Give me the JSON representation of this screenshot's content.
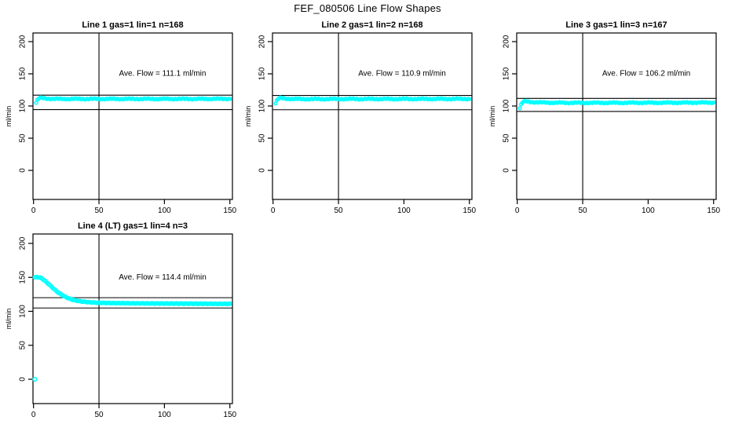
{
  "page_title": "FEF_080506  Line Flow Shapes",
  "colors": {
    "marker": "#00FFFF",
    "axis": "#000000",
    "background": "#FFFFFF",
    "text": "#000000"
  },
  "chart_data": [
    {
      "type": "scatter",
      "title": "Line 1 gas=1 lin=1 n=168",
      "line": 1,
      "gas": 1,
      "lin": 1,
      "n": 168,
      "annotation": "Ave. Flow =  111.1  ml/min",
      "ave_flow_ml_min": 111.1,
      "ylabel": "ml/min",
      "x_ticks": [
        0,
        50,
        100,
        150
      ],
      "y_ticks": [
        0,
        50,
        100,
        150,
        200
      ],
      "xlim": [
        0,
        152
      ],
      "ylim": [
        -45,
        217
      ],
      "grid": false,
      "legend": false,
      "vline_x": 50,
      "hlines": [
        116.9,
        94.4
      ],
      "x_start": 2,
      "x_end": 150,
      "plot_point_count": 168,
      "series_anchors": [
        [
          2,
          105
        ],
        [
          3,
          109.5
        ],
        [
          4,
          111.8
        ],
        [
          5,
          112.8
        ],
        [
          6,
          112.6
        ],
        [
          8,
          112
        ],
        [
          10,
          111.6
        ],
        [
          14,
          111.2
        ],
        [
          20,
          111
        ],
        [
          30,
          111
        ],
        [
          50,
          111
        ],
        [
          75,
          111
        ],
        [
          100,
          111
        ],
        [
          125,
          111
        ],
        [
          150,
          111.2
        ]
      ],
      "outliers": []
    },
    {
      "type": "scatter",
      "title": "Line 2 gas=1 lin=2 n=168",
      "line": 2,
      "gas": 1,
      "lin": 2,
      "n": 168,
      "annotation": "Ave. Flow =  110.9  ml/min",
      "ave_flow_ml_min": 110.9,
      "ylabel": "ml/min",
      "x_ticks": [
        0,
        50,
        100,
        150
      ],
      "y_ticks": [
        0,
        50,
        100,
        150,
        200
      ],
      "xlim": [
        0,
        152
      ],
      "ylim": [
        -45,
        217
      ],
      "grid": false,
      "legend": false,
      "vline_x": 50,
      "hlines": [
        116.4,
        94.2
      ],
      "x_start": 2,
      "x_end": 150,
      "plot_point_count": 168,
      "series_anchors": [
        [
          2,
          104
        ],
        [
          3,
          109
        ],
        [
          4,
          111.3
        ],
        [
          5,
          112.4
        ],
        [
          6,
          112.4
        ],
        [
          8,
          111.8
        ],
        [
          10,
          111.4
        ],
        [
          14,
          111
        ],
        [
          20,
          110.8
        ],
        [
          30,
          110.8
        ],
        [
          50,
          110.9
        ],
        [
          75,
          110.9
        ],
        [
          100,
          110.9
        ],
        [
          125,
          111
        ],
        [
          150,
          111
        ]
      ],
      "outliers": []
    },
    {
      "type": "scatter",
      "title": "Line 3 gas=1 lin=3 n=167",
      "line": 3,
      "gas": 1,
      "lin": 3,
      "n": 167,
      "annotation": "Ave. Flow =  106.2  ml/min",
      "ave_flow_ml_min": 106.2,
      "ylabel": "ml/min",
      "x_ticks": [
        0,
        50,
        100,
        150
      ],
      "y_ticks": [
        0,
        50,
        100,
        150,
        200
      ],
      "xlim": [
        0,
        152
      ],
      "ylim": [
        -45,
        217
      ],
      "grid": false,
      "legend": false,
      "vline_x": 50,
      "hlines": [
        111.8,
        91.5
      ],
      "x_start": 2,
      "x_end": 150,
      "plot_point_count": 167,
      "series_anchors": [
        [
          2,
          96.5
        ],
        [
          3,
          102.5
        ],
        [
          4,
          105.5
        ],
        [
          5,
          107
        ],
        [
          6,
          107.3
        ],
        [
          8,
          106.9
        ],
        [
          10,
          106.4
        ],
        [
          14,
          105.8
        ],
        [
          20,
          105.4
        ],
        [
          30,
          105.1
        ],
        [
          50,
          105
        ],
        [
          75,
          105
        ],
        [
          100,
          105.1
        ],
        [
          125,
          105.2
        ],
        [
          150,
          105.4
        ]
      ],
      "outliers": []
    },
    {
      "type": "scatter",
      "title": "Line 4 (LT) gas=1 lin=4 n=3",
      "line": 4,
      "lt": true,
      "gas": 1,
      "lin": 4,
      "n": 3,
      "annotation": "Ave. Flow =  114.4  ml/min",
      "ave_flow_ml_min": 114.4,
      "ylabel": "ml/min",
      "x_ticks": [
        0,
        50,
        100,
        150
      ],
      "y_ticks": [
        0,
        50,
        100,
        150,
        200
      ],
      "xlim": [
        0,
        152
      ],
      "ylim": [
        -45,
        217
      ],
      "grid": false,
      "legend": false,
      "vline_x": 50,
      "hlines": [
        120.1,
        104.9
      ],
      "x_start": 1,
      "x_end": 150,
      "plot_point_count": 150,
      "series_anchors": [
        [
          1,
          150
        ],
        [
          3,
          150.3
        ],
        [
          5,
          149.8
        ],
        [
          7,
          147.5
        ],
        [
          9,
          144.5
        ],
        [
          11,
          141
        ],
        [
          13,
          137.5
        ],
        [
          15,
          134
        ],
        [
          17,
          130.5
        ],
        [
          19,
          127.5
        ],
        [
          21,
          125
        ],
        [
          24,
          121.5
        ],
        [
          27,
          119
        ],
        [
          30,
          117
        ],
        [
          34,
          115.3
        ],
        [
          38,
          114.2
        ],
        [
          43,
          113.3
        ],
        [
          50,
          112.6
        ],
        [
          60,
          112.1
        ],
        [
          75,
          111.8
        ],
        [
          90,
          111.6
        ],
        [
          110,
          111.4
        ],
        [
          130,
          111.2
        ],
        [
          150,
          111
        ]
      ],
      "outliers": [
        [
          1,
          0
        ]
      ]
    }
  ]
}
